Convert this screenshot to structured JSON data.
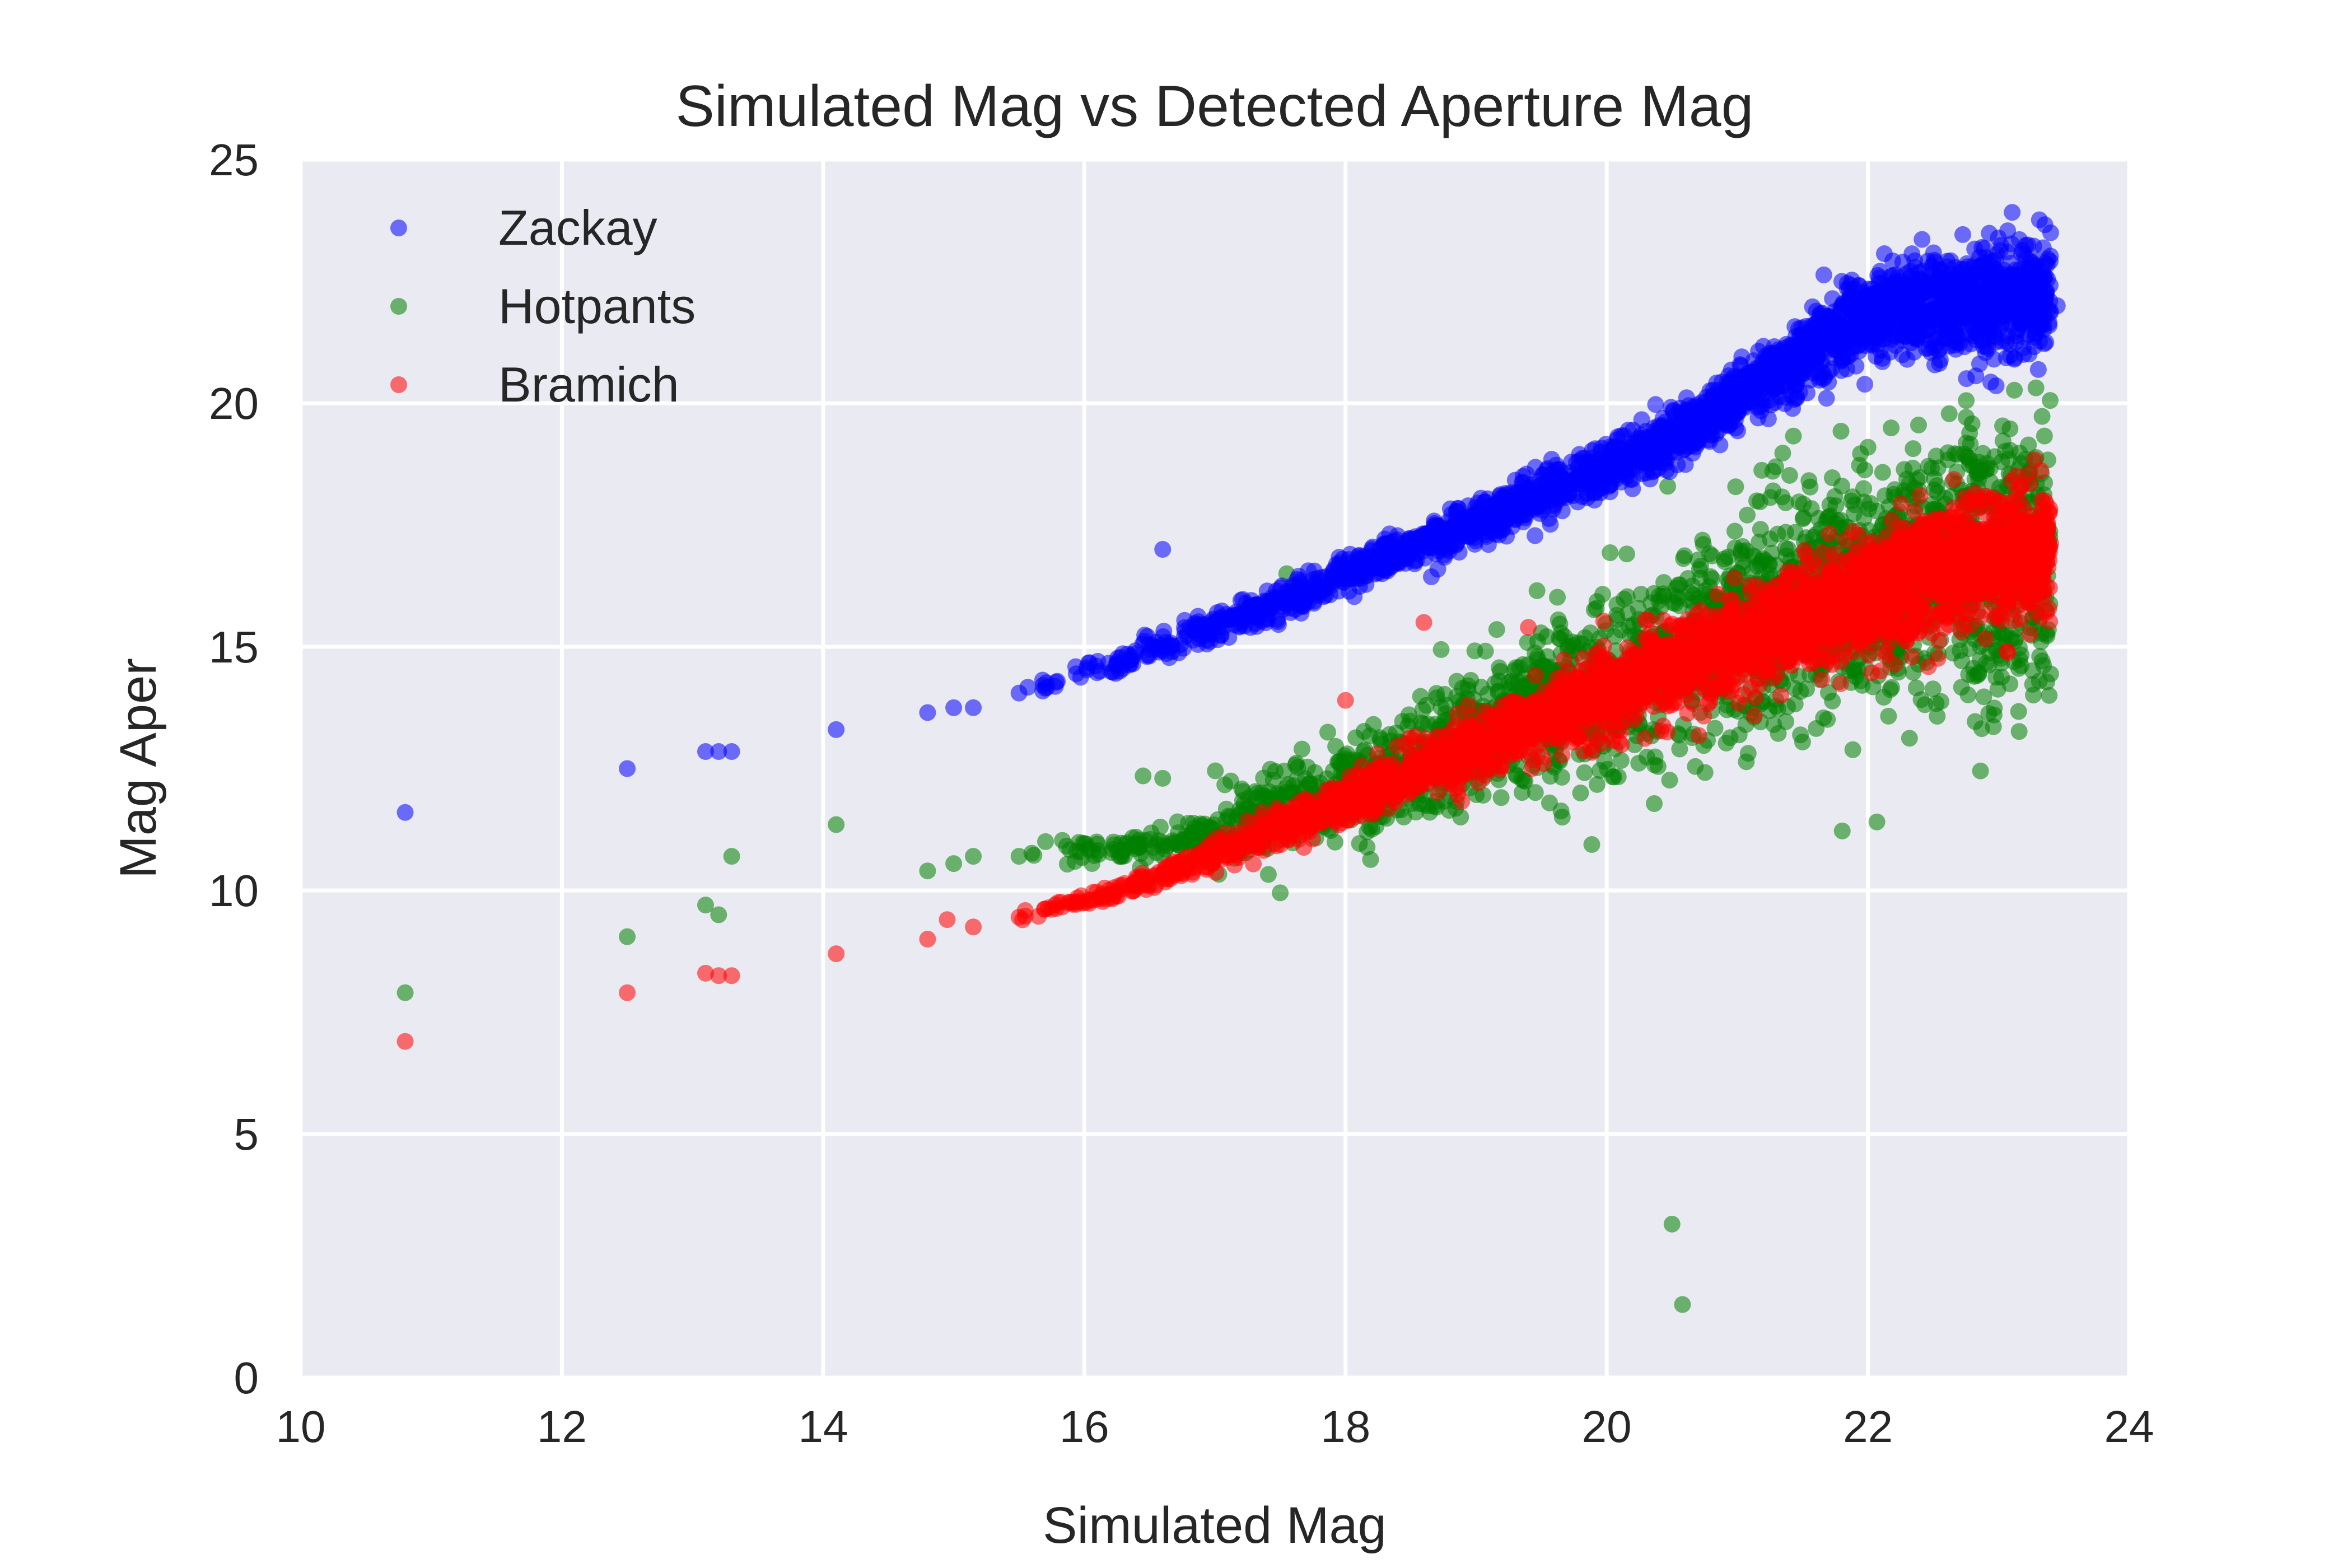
{
  "chart_data": {
    "type": "scatter",
    "title": "Simulated Mag vs Detected Aperture Mag",
    "xlabel": "Simulated Mag",
    "ylabel": "Mag Aper",
    "xlim": [
      10,
      24
    ],
    "ylim": [
      0,
      25
    ],
    "xticks": [
      10,
      12,
      14,
      16,
      18,
      20,
      22,
      24
    ],
    "yticks": [
      0,
      5,
      10,
      15,
      20,
      25
    ],
    "xtick_labels": [
      "10",
      "12",
      "14",
      "16",
      "18",
      "20",
      "22",
      "24"
    ],
    "ytick_labels": [
      "0",
      "5",
      "10",
      "15",
      "20",
      "25"
    ],
    "grid": true,
    "background": "#eaeaf2",
    "legend_position": "top-left",
    "series": [
      {
        "name": "Zackay",
        "color": "#0000ff",
        "trend": [
          [
            15.5,
            14.05
          ],
          [
            16.5,
            14.9
          ],
          [
            17.5,
            15.9
          ],
          [
            18.5,
            17.0
          ],
          [
            19.5,
            18.1
          ],
          [
            20.5,
            19.3
          ],
          [
            21.0,
            20.1
          ],
          [
            21.5,
            21.0
          ],
          [
            22.0,
            21.8
          ],
          [
            22.5,
            22.0
          ],
          [
            23.0,
            22.1
          ],
          [
            23.5,
            22.2
          ]
        ],
        "values": [
          [
            10.8,
            11.6
          ],
          [
            12.5,
            12.5
          ],
          [
            13.1,
            12.85
          ],
          [
            13.2,
            12.85
          ],
          [
            13.3,
            12.85
          ],
          [
            14.1,
            13.3
          ],
          [
            14.8,
            13.65
          ],
          [
            15.0,
            13.75
          ],
          [
            15.15,
            13.75
          ],
          [
            15.5,
            14.05
          ],
          [
            15.7,
            14.15
          ],
          [
            16.6,
            17.0
          ],
          [
            18.6,
            17.05
          ],
          [
            19.6,
            17.9
          ],
          [
            21.8,
            22.5
          ],
          [
            22.8,
            21.6
          ],
          [
            23.45,
            22.0
          ],
          [
            23.2,
            22.3
          ],
          [
            22.3,
            20.9
          ]
        ]
      },
      {
        "name": "Hotpants",
        "color": "#008000",
        "trend": [
          [
            15.5,
            10.7
          ],
          [
            16.5,
            10.9
          ],
          [
            17.5,
            11.6
          ],
          [
            18.5,
            12.6
          ],
          [
            19.5,
            13.8
          ],
          [
            20.5,
            14.8
          ],
          [
            21.5,
            15.9
          ],
          [
            22.5,
            16.6
          ],
          [
            23.5,
            17.1
          ]
        ],
        "values": [
          [
            10.8,
            7.9
          ],
          [
            12.5,
            9.05
          ],
          [
            13.1,
            9.7
          ],
          [
            13.2,
            9.5
          ],
          [
            13.3,
            10.7
          ],
          [
            14.1,
            11.35
          ],
          [
            14.8,
            10.4
          ],
          [
            15.0,
            10.55
          ],
          [
            15.15,
            10.7
          ],
          [
            15.5,
            10.7
          ],
          [
            16.45,
            12.35
          ],
          [
            16.6,
            12.3
          ],
          [
            17.5,
            9.95
          ],
          [
            17.55,
            16.5
          ],
          [
            20.5,
            3.15
          ],
          [
            20.58,
            1.5
          ],
          [
            18.4,
            12.6
          ],
          [
            19.8,
            12.0
          ],
          [
            21.8,
            18.3
          ],
          [
            22.8,
            18.2
          ]
        ]
      },
      {
        "name": "Bramich",
        "color": "#ff0000",
        "trend": [
          [
            15.5,
            9.45
          ],
          [
            16.5,
            10.2
          ],
          [
            17.5,
            11.3
          ],
          [
            18.5,
            12.4
          ],
          [
            19.5,
            13.5
          ],
          [
            20.5,
            14.6
          ],
          [
            21.5,
            15.6
          ],
          [
            22.5,
            16.5
          ],
          [
            23.5,
            17.1
          ]
        ],
        "values": [
          [
            10.8,
            6.9
          ],
          [
            12.5,
            7.9
          ],
          [
            13.1,
            8.3
          ],
          [
            13.2,
            8.25
          ],
          [
            13.3,
            8.25
          ],
          [
            14.1,
            8.7
          ],
          [
            14.8,
            9.0
          ],
          [
            14.95,
            9.4
          ],
          [
            15.15,
            9.25
          ],
          [
            15.5,
            9.45
          ],
          [
            15.8,
            9.75
          ],
          [
            18.6,
            15.5
          ],
          [
            18.0,
            13.9
          ],
          [
            19.4,
            15.4
          ]
        ]
      }
    ]
  }
}
